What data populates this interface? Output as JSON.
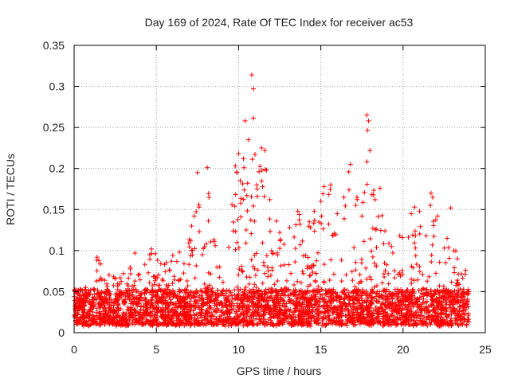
{
  "chart_data": {
    "type": "scatter",
    "title": "Day 169 of 2024, Rate Of TEC Index for receiver ac53",
    "xlabel": "GPS time / hours",
    "ylabel": "ROTI / TECUs",
    "xlim": [
      0,
      25
    ],
    "ylim": [
      0,
      0.35
    ],
    "xticks": [
      0,
      5,
      10,
      15,
      20,
      25
    ],
    "yticks": [
      0,
      0.05,
      0.1,
      0.15,
      0.2,
      0.25,
      0.3,
      0.35
    ],
    "xtick_labels": [
      "0",
      "5",
      "10",
      "15",
      "20",
      "25"
    ],
    "ytick_labels": [
      "0",
      "0.05",
      "0.1",
      "0.15",
      "0.2",
      "0.25",
      "0.3",
      "0.35"
    ],
    "grid": true,
    "marker": "+",
    "marker_color": "#ff0000",
    "x_range_of_data": [
      0,
      24
    ],
    "series": [
      {
        "points": [
          [
            0.1,
            0.048
          ],
          [
            0.3,
            0.036
          ],
          [
            0.7,
            0.055
          ],
          [
            1.0,
            0.052
          ],
          [
            1.4,
            0.092
          ],
          [
            1.5,
            0.088
          ],
          [
            2.4,
            0.068
          ],
          [
            3.0,
            0.072
          ],
          [
            3.7,
            0.097
          ],
          [
            4.6,
            0.095
          ],
          [
            4.7,
            0.102
          ],
          [
            5.5,
            0.083
          ],
          [
            6.0,
            0.094
          ],
          [
            6.4,
            0.098
          ],
          [
            7.3,
            0.142
          ],
          [
            7.5,
            0.195
          ],
          [
            7.6,
            0.153
          ],
          [
            7.8,
            0.095
          ],
          [
            8.1,
            0.201
          ],
          [
            8.2,
            0.165
          ],
          [
            8.5,
            0.113
          ],
          [
            9.4,
            0.104
          ],
          [
            9.6,
            0.156
          ],
          [
            9.8,
            0.203
          ],
          [
            9.9,
            0.195
          ],
          [
            10.0,
            0.218
          ],
          [
            10.1,
            0.185
          ],
          [
            10.3,
            0.212
          ],
          [
            10.4,
            0.258
          ],
          [
            10.5,
            0.167
          ],
          [
            10.6,
            0.235
          ],
          [
            10.8,
            0.314
          ],
          [
            10.9,
            0.297
          ],
          [
            11.0,
            0.217
          ],
          [
            11.1,
            0.18
          ],
          [
            11.4,
            0.225
          ],
          [
            11.6,
            0.222
          ],
          [
            11.7,
            0.198
          ],
          [
            11.9,
            0.162
          ],
          [
            12.3,
            0.136
          ],
          [
            12.5,
            0.122
          ],
          [
            13.1,
            0.128
          ],
          [
            13.6,
            0.148
          ],
          [
            14.3,
            0.135
          ],
          [
            14.6,
            0.148
          ],
          [
            15.0,
            0.16
          ],
          [
            15.2,
            0.178
          ],
          [
            15.6,
            0.18
          ],
          [
            16.0,
            0.145
          ],
          [
            16.4,
            0.165
          ],
          [
            16.7,
            0.196
          ],
          [
            16.8,
            0.205
          ],
          [
            17.2,
            0.165
          ],
          [
            17.5,
            0.142
          ],
          [
            17.8,
            0.265
          ],
          [
            17.9,
            0.258
          ],
          [
            18.3,
            0.162
          ],
          [
            18.6,
            0.176
          ],
          [
            18.9,
            0.124
          ],
          [
            19.3,
            0.105
          ],
          [
            20.5,
            0.145
          ],
          [
            20.7,
            0.153
          ],
          [
            21.0,
            0.148
          ],
          [
            21.4,
            0.118
          ],
          [
            21.7,
            0.17
          ],
          [
            21.8,
            0.165
          ],
          [
            22.1,
            0.142
          ],
          [
            22.5,
            0.103
          ],
          [
            22.9,
            0.152
          ],
          [
            23.3,
            0.09
          ],
          [
            23.8,
            0.076
          ],
          [
            24.0,
            0.05
          ]
        ]
      }
    ]
  }
}
